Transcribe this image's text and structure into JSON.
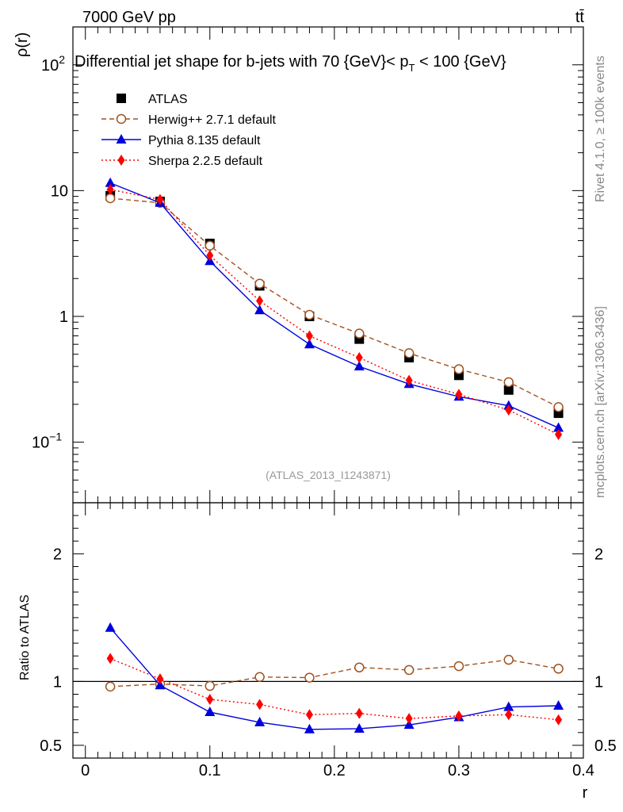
{
  "header": {
    "energy_label": "7000 GeV pp",
    "process_label": "tt̄",
    "side_label_top": "Rivet 4.1.0, ≥ 100k events",
    "side_label_bottom": "mcplots.cern.ch [arXiv:1306.3436]"
  },
  "chart_data": [
    {
      "type": "line",
      "panel": "main",
      "title": "Differential jet shape for b-jets with 70 {GeV}< p_T < 100 {GeV}",
      "title_parts": {
        "pre": "Differential jet shape for b-jets with 70 {GeV}< p",
        "sub": "T",
        "post": " < 100 {GeV}"
      },
      "ylabel": "ρ(r)",
      "yscale": "log",
      "ylim": [
        0.033,
        200
      ],
      "xlim": [
        -0.01,
        0.4
      ],
      "ytick_labels": [
        {
          "value": 100,
          "base": "10",
          "exp": "2"
        },
        {
          "value": 10,
          "base": "10",
          "exp": ""
        },
        {
          "value": 1,
          "base": "1",
          "exp": ""
        },
        {
          "value": 0.1,
          "base": "10",
          "exp": "−1"
        }
      ],
      "watermark": "(ATLAS_2013_I1243871)",
      "x": [
        0.02,
        0.06,
        0.1,
        0.14,
        0.18,
        0.22,
        0.26,
        0.3,
        0.34,
        0.38
      ],
      "series": [
        {
          "name": "ATLAS",
          "style": "data",
          "color": "#000000",
          "values": [
            9.1,
            8.2,
            3.8,
            1.75,
            1.0,
            0.66,
            0.47,
            0.34,
            0.26,
            0.17
          ]
        },
        {
          "name": "Herwig++ 2.7.1 default",
          "style": "dashed-open-circle",
          "color": "#a0521e",
          "values": [
            8.7,
            8.0,
            3.65,
            1.82,
            1.03,
            0.73,
            0.51,
            0.38,
            0.3,
            0.19
          ]
        },
        {
          "name": "Pythia 8.135 default",
          "style": "solid-triangle",
          "color": "#0000dd",
          "values": [
            11.5,
            8.0,
            2.75,
            1.12,
            0.6,
            0.4,
            0.29,
            0.23,
            0.195,
            0.13
          ]
        },
        {
          "name": "Sherpa 2.2.5 default",
          "style": "dotted-diamond",
          "color": "#ff0000",
          "values": [
            10.2,
            8.5,
            3.05,
            1.33,
            0.7,
            0.47,
            0.31,
            0.24,
            0.18,
            0.115
          ]
        }
      ]
    },
    {
      "type": "line",
      "panel": "ratio",
      "ylabel": "Ratio to ATLAS",
      "xlabel": "r",
      "ylim": [
        0.4,
        2.4
      ],
      "reference_line": 1,
      "ytick_labels": [
        {
          "value": 2,
          "label": "2"
        },
        {
          "value": 1,
          "label": "1"
        },
        {
          "value": 0.5,
          "label": "0.5"
        }
      ],
      "xtick_labels": [
        "0",
        "0.1",
        "0.2",
        "0.3",
        "0.4"
      ],
      "x": [
        0.02,
        0.06,
        0.1,
        0.14,
        0.18,
        0.22,
        0.26,
        0.3,
        0.34,
        0.38
      ],
      "series": [
        {
          "name": "Herwig++ 2.7.1 default",
          "style": "dashed-open-circle",
          "color": "#a0521e",
          "values": [
            0.96,
            0.98,
            0.965,
            1.035,
            1.03,
            1.11,
            1.09,
            1.12,
            1.17,
            1.1
          ]
        },
        {
          "name": "Pythia 8.135 default",
          "style": "solid-triangle",
          "color": "#0000dd",
          "values": [
            1.42,
            0.97,
            0.76,
            0.68,
            0.625,
            0.63,
            0.66,
            0.72,
            0.8,
            0.81
          ]
        },
        {
          "name": "Sherpa 2.2.5 default",
          "style": "dotted-diamond",
          "color": "#ff0000",
          "values": [
            1.18,
            1.02,
            0.86,
            0.82,
            0.74,
            0.75,
            0.71,
            0.73,
            0.74,
            0.7
          ]
        }
      ]
    }
  ]
}
